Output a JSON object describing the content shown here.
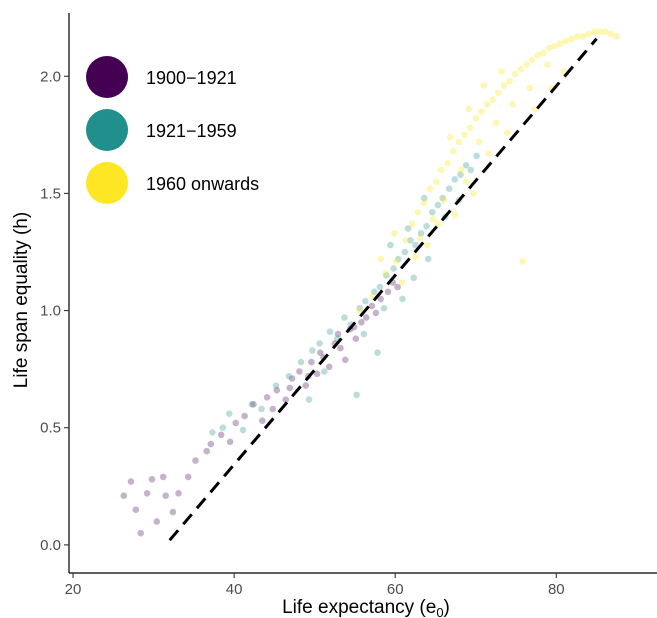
{
  "chart_data": {
    "type": "scatter",
    "xlabel": "Life expectancy (e",
    "xlabel_subscript": "0",
    "xlabel_suffix": ")",
    "ylabel": "Life span equality (h)",
    "xlim": [
      19.5,
      92.5
    ],
    "ylim": [
      -0.12,
      2.27
    ],
    "x_ticks": [
      20,
      40,
      60,
      80
    ],
    "x_tick_labels": [
      "20",
      "40",
      "60",
      "80"
    ],
    "y_ticks": [
      0.0,
      0.5,
      1.0,
      1.5,
      2.0
    ],
    "y_tick_labels": [
      "0.0",
      "0.5",
      "1.0",
      "1.5",
      "2.0"
    ],
    "grid": false,
    "legend_position": "top-left",
    "reference_line": {
      "style": "dashed",
      "color": "#000000",
      "from": [
        32,
        0.02
      ],
      "to": [
        85,
        2.16
      ]
    },
    "series": [
      {
        "name": "1900−1921",
        "color": "#440154",
        "opacity": 0.3,
        "points": [
          [
            26.3,
            0.21
          ],
          [
            27.2,
            0.27
          ],
          [
            27.8,
            0.15
          ],
          [
            28.4,
            0.05
          ],
          [
            29.2,
            0.22
          ],
          [
            29.8,
            0.28
          ],
          [
            30.4,
            0.1
          ],
          [
            31.2,
            0.29
          ],
          [
            31.5,
            0.21
          ],
          [
            32.4,
            0.14
          ],
          [
            33.1,
            0.22
          ],
          [
            34.3,
            0.29
          ],
          [
            35.2,
            0.36
          ],
          [
            36.6,
            0.4
          ],
          [
            37.1,
            0.43
          ],
          [
            38.4,
            0.47
          ],
          [
            39.5,
            0.44
          ],
          [
            40.2,
            0.52
          ],
          [
            41.3,
            0.55
          ],
          [
            42.4,
            0.6
          ],
          [
            43.5,
            0.53
          ],
          [
            44.1,
            0.63
          ],
          [
            45.3,
            0.66
          ],
          [
            46.4,
            0.62
          ],
          [
            47.2,
            0.71
          ],
          [
            48.1,
            0.74
          ],
          [
            48.9,
            0.68
          ],
          [
            49.6,
            0.78
          ],
          [
            50.3,
            0.73
          ],
          [
            51.1,
            0.8
          ],
          [
            51.8,
            0.76
          ],
          [
            52.5,
            0.86
          ],
          [
            53.2,
            0.84
          ],
          [
            53.8,
            0.79
          ],
          [
            54.4,
            0.92
          ],
          [
            55.1,
            0.88
          ],
          [
            55.8,
            0.95
          ],
          [
            56.4,
            0.97
          ],
          [
            57.1,
            1.02
          ],
          [
            57.6,
            0.99
          ],
          [
            58.2,
            1.05
          ],
          [
            59.1,
            1.08
          ],
          [
            59.7,
            1.12
          ],
          [
            60.3,
            1.1
          ],
          [
            44.8,
            0.58
          ],
          [
            46.9,
            0.67
          ],
          [
            49.2,
            0.72
          ],
          [
            50.7,
            0.82
          ],
          [
            52.9,
            0.9
          ],
          [
            54.9,
            0.93
          ]
        ]
      },
      {
        "name": "1921−1959",
        "color": "#21908c",
        "opacity": 0.3,
        "points": [
          [
            37.3,
            0.48
          ],
          [
            38.6,
            0.5
          ],
          [
            39.4,
            0.56
          ],
          [
            41.1,
            0.49
          ],
          [
            42.2,
            0.6
          ],
          [
            43.4,
            0.58
          ],
          [
            45.2,
            0.68
          ],
          [
            46.8,
            0.72
          ],
          [
            48.3,
            0.78
          ],
          [
            49.7,
            0.83
          ],
          [
            50.6,
            0.86
          ],
          [
            51.9,
            0.91
          ],
          [
            52.8,
            0.88
          ],
          [
            53.7,
            0.97
          ],
          [
            54.5,
            0.94
          ],
          [
            55.6,
            1.01
          ],
          [
            56.3,
            1.04
          ],
          [
            57.4,
            1.08
          ],
          [
            58.1,
            1.1
          ],
          [
            58.9,
            1.15
          ],
          [
            59.8,
            1.18
          ],
          [
            60.4,
            1.22
          ],
          [
            61.2,
            1.25
          ],
          [
            61.9,
            1.3
          ],
          [
            62.5,
            1.28
          ],
          [
            63.2,
            1.33
          ],
          [
            63.9,
            1.36
          ],
          [
            64.6,
            1.42
          ],
          [
            65.3,
            1.45
          ],
          [
            65.9,
            1.48
          ],
          [
            66.7,
            1.52
          ],
          [
            67.4,
            1.56
          ],
          [
            68.1,
            1.58
          ],
          [
            68.8,
            1.62
          ],
          [
            69.4,
            1.6
          ],
          [
            70.1,
            1.66
          ],
          [
            49.3,
            0.62
          ],
          [
            51.2,
            0.74
          ],
          [
            56.1,
            0.9
          ],
          [
            57.8,
            0.82
          ],
          [
            55.2,
            0.64
          ],
          [
            60.9,
            1.05
          ],
          [
            62.3,
            1.14
          ],
          [
            64.1,
            1.22
          ],
          [
            59.4,
            1.28
          ],
          [
            61.6,
            1.35
          ],
          [
            58.6,
            1.01
          ],
          [
            63.6,
            1.48
          ],
          [
            66.2,
            1.4
          ],
          [
            67.9,
            1.47
          ]
        ]
      },
      {
        "name": "1960 onwards",
        "color": "#fde725",
        "opacity": 0.35,
        "points": [
          [
            55.6,
            1.0
          ],
          [
            57.2,
            1.06
          ],
          [
            58.8,
            1.16
          ],
          [
            60.1,
            1.21
          ],
          [
            61.3,
            1.3
          ],
          [
            62.1,
            1.37
          ],
          [
            62.8,
            1.42
          ],
          [
            63.6,
            1.46
          ],
          [
            64.3,
            1.52
          ],
          [
            65.1,
            1.55
          ],
          [
            65.7,
            1.6
          ],
          [
            66.5,
            1.63
          ],
          [
            67.2,
            1.68
          ],
          [
            67.9,
            1.72
          ],
          [
            68.6,
            1.75
          ],
          [
            69.3,
            1.78
          ],
          [
            70.0,
            1.82
          ],
          [
            70.7,
            1.85
          ],
          [
            71.4,
            1.88
          ],
          [
            72.1,
            1.9
          ],
          [
            72.8,
            1.93
          ],
          [
            73.5,
            1.96
          ],
          [
            74.2,
            1.98
          ],
          [
            74.9,
            2.01
          ],
          [
            75.6,
            2.03
          ],
          [
            76.3,
            2.05
          ],
          [
            77.0,
            2.07
          ],
          [
            77.7,
            2.09
          ],
          [
            78.4,
            2.1
          ],
          [
            79.1,
            2.12
          ],
          [
            79.8,
            2.13
          ],
          [
            80.5,
            2.14
          ],
          [
            81.2,
            2.15
          ],
          [
            81.9,
            2.16
          ],
          [
            82.6,
            2.17
          ],
          [
            83.3,
            2.17
          ],
          [
            84.0,
            2.18
          ],
          [
            84.7,
            2.19
          ],
          [
            85.4,
            2.19
          ],
          [
            86.1,
            2.19
          ],
          [
            86.8,
            2.18
          ],
          [
            87.5,
            2.17
          ],
          [
            63.1,
            1.31
          ],
          [
            64.7,
            1.39
          ],
          [
            66.0,
            1.47
          ],
          [
            68.2,
            1.6
          ],
          [
            70.4,
            1.72
          ],
          [
            72.5,
            1.8
          ],
          [
            74.6,
            1.88
          ],
          [
            76.7,
            1.95
          ],
          [
            65.3,
            1.37
          ],
          [
            68.8,
            1.55
          ],
          [
            71.6,
            1.67
          ],
          [
            73.9,
            1.76
          ],
          [
            75.8,
            1.21
          ],
          [
            77.3,
            1.86
          ],
          [
            79.4,
            1.95
          ],
          [
            80.9,
            2.02
          ],
          [
            67.4,
            1.41
          ],
          [
            69.7,
            1.5
          ],
          [
            62.5,
            1.23
          ],
          [
            64.0,
            1.28
          ],
          [
            60.8,
            1.12
          ],
          [
            58.2,
            1.22
          ],
          [
            59.9,
            1.33
          ],
          [
            71.0,
            1.96
          ],
          [
            73.2,
            2.02
          ],
          [
            69.1,
            1.86
          ],
          [
            66.8,
            1.74
          ],
          [
            78.9,
            2.05
          ]
        ]
      }
    ]
  }
}
